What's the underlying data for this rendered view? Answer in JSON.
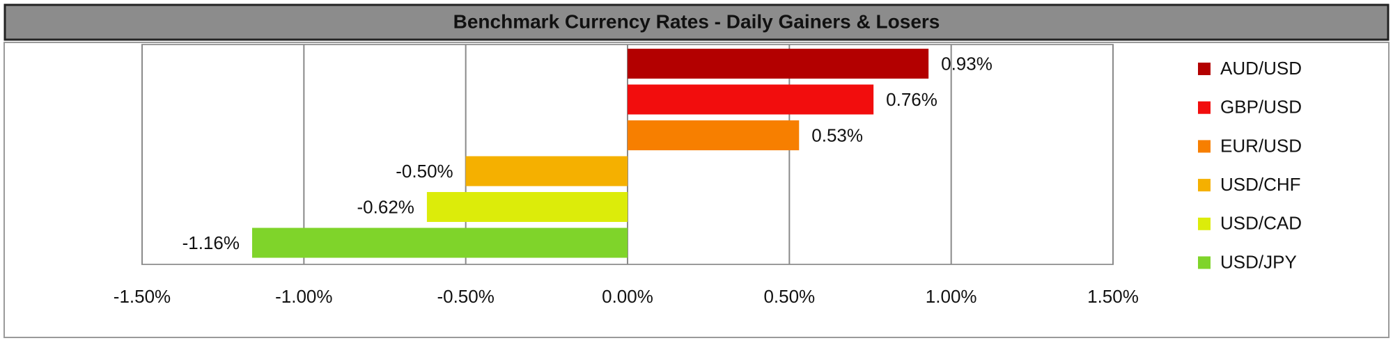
{
  "chart_data": {
    "type": "bar",
    "orientation": "horizontal",
    "title": "Benchmark Currency Rates - Daily Gainers & Losers",
    "categories": [
      "AUD/USD",
      "GBP/USD",
      "EUR/USD",
      "USD/CHF",
      "USD/CAD",
      "USD/JPY"
    ],
    "values": [
      0.93,
      0.76,
      0.53,
      -0.5,
      -0.62,
      -1.16
    ],
    "value_labels": [
      "0.93%",
      "0.76%",
      "0.53%",
      "-0.50%",
      "-0.62%",
      "-1.16%"
    ],
    "colors": [
      "#b30000",
      "#f20d0d",
      "#f77f00",
      "#f5b000",
      "#dcec0a",
      "#7fd42a"
    ],
    "xlim": [
      -1.5,
      1.5
    ],
    "xticks": [
      {
        "value": -1.5,
        "label": "-1.50%"
      },
      {
        "value": -1,
        "label": "-1.00%"
      },
      {
        "value": -0.5,
        "label": "-0.50%"
      },
      {
        "value": 0,
        "label": "0.00%"
      },
      {
        "value": 0.5,
        "label": "0.50%"
      },
      {
        "value": 1,
        "label": "1.00%"
      },
      {
        "value": 1.5,
        "label": "1.50%"
      }
    ],
    "grid": true,
    "legend": "right"
  }
}
